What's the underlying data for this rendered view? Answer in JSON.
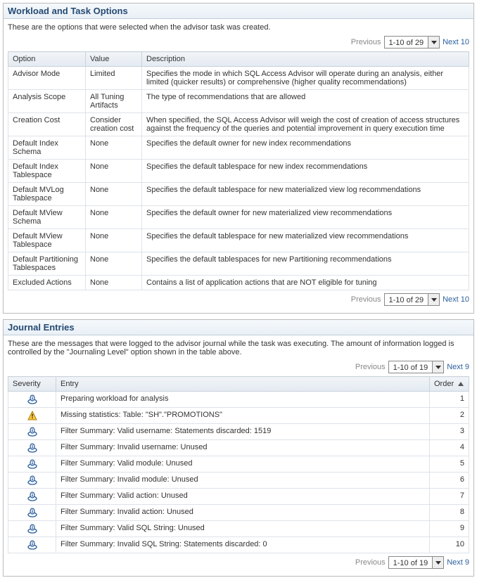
{
  "workload": {
    "title": "Workload and Task Options",
    "desc": "These are the options that were selected when the advisor task was created.",
    "pager": {
      "prev": "Previous",
      "range": "1-10 of 29",
      "next": "Next 10"
    },
    "columns": {
      "option": "Option",
      "value": "Value",
      "description": "Description"
    },
    "rows": [
      {
        "option": "Advisor Mode",
        "value": "Limited",
        "desc": "Specifies the mode in which SQL Access Advisor will operate during an analysis, either limited (quicker results) or comprehensive (higher quality recommendations)"
      },
      {
        "option": "Analysis Scope",
        "value": "All Tuning Artifacts",
        "desc": "The type of recommendations that are allowed"
      },
      {
        "option": "Creation Cost",
        "value": "Consider creation cost",
        "desc": "When specified, the SQL Access Advisor will weigh the cost of creation of access structures against the frequency of the queries and potential improvement in query execution time"
      },
      {
        "option": "Default Index Schema",
        "value": "None",
        "desc": "Specifies the default owner for new index recommendations"
      },
      {
        "option": "Default Index Tablespace",
        "value": "None",
        "desc": "Specifies the default tablespace for new index recommendations"
      },
      {
        "option": "Default MVLog Tablespace",
        "value": "None",
        "desc": "Specifies the default tablespace for new materialized view log recommendations"
      },
      {
        "option": "Default MView Schema",
        "value": "None",
        "desc": "Specifies the default owner for new materialized view recommendations"
      },
      {
        "option": "Default MView Tablespace",
        "value": "None",
        "desc": "Specifies the default tablespace for new materialized view recommendations"
      },
      {
        "option": "Default Partitioning Tablespaces",
        "value": "None",
        "desc": "Specifies the default tablespaces for new Partitioning recommendations"
      },
      {
        "option": "Excluded Actions",
        "value": "None",
        "desc": "Contains a list of application actions that are NOT eligible for tuning"
      }
    ]
  },
  "journal": {
    "title": "Journal Entries",
    "desc": "These are the messages that were logged to the advisor journal while the task was executing. The amount of information logged is controlled by the \"Journaling Level\" option shown in the table above.",
    "pager": {
      "prev": "Previous",
      "range": "1-10 of 19",
      "next": "Next 9"
    },
    "columns": {
      "severity": "Severity",
      "entry": "Entry",
      "order": "Order"
    },
    "rows": [
      {
        "sev": "info",
        "entry": "Preparing workload for analysis",
        "order": "1"
      },
      {
        "sev": "warn",
        "entry": "Missing statistics: Table: \"SH\".\"PROMOTIONS\"",
        "order": "2"
      },
      {
        "sev": "info",
        "entry": "Filter Summary: Valid username: Statements discarded: 1519",
        "order": "3"
      },
      {
        "sev": "info",
        "entry": "Filter Summary: Invalid username: Unused",
        "order": "4"
      },
      {
        "sev": "info",
        "entry": "Filter Summary: Valid module: Unused",
        "order": "5"
      },
      {
        "sev": "info",
        "entry": "Filter Summary: Invalid module: Unused",
        "order": "6"
      },
      {
        "sev": "info",
        "entry": "Filter Summary: Valid action: Unused",
        "order": "7"
      },
      {
        "sev": "info",
        "entry": "Filter Summary: Invalid action: Unused",
        "order": "8"
      },
      {
        "sev": "info",
        "entry": "Filter Summary: Valid SQL String: Unused",
        "order": "9"
      },
      {
        "sev": "info",
        "entry": "Filter Summary: Invalid SQL String: Statements discarded: 0",
        "order": "10"
      }
    ]
  }
}
